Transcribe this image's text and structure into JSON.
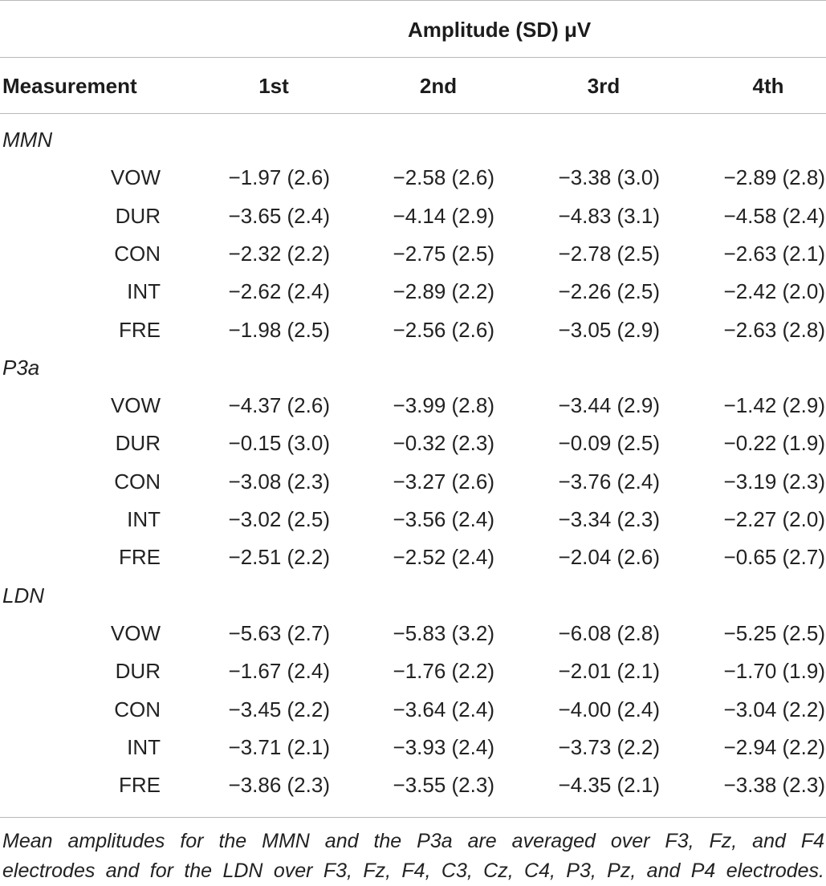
{
  "header": {
    "group_title": "Amplitude (SD) μV",
    "measurement": "Measurement",
    "columns": [
      "1st",
      "2nd",
      "3rd",
      "4th"
    ]
  },
  "groups": [
    {
      "name": "MMN",
      "rows": [
        {
          "label": "VOW",
          "values": [
            "−1.97 (2.6)",
            "−2.58 (2.6)",
            "−3.38 (3.0)",
            "−2.89 (2.8)"
          ]
        },
        {
          "label": "DUR",
          "values": [
            "−3.65 (2.4)",
            "−4.14 (2.9)",
            "−4.83 (3.1)",
            "−4.58 (2.4)"
          ]
        },
        {
          "label": "CON",
          "values": [
            "−2.32 (2.2)",
            "−2.75 (2.5)",
            "−2.78 (2.5)",
            "−2.63 (2.1)"
          ]
        },
        {
          "label": "INT",
          "values": [
            "−2.62 (2.4)",
            "−2.89 (2.2)",
            "−2.26 (2.5)",
            "−2.42 (2.0)"
          ]
        },
        {
          "label": "FRE",
          "values": [
            "−1.98 (2.5)",
            "−2.56 (2.6)",
            "−3.05 (2.9)",
            "−2.63 (2.8)"
          ]
        }
      ]
    },
    {
      "name": "P3a",
      "rows": [
        {
          "label": "VOW",
          "values": [
            "−4.37 (2.6)",
            "−3.99 (2.8)",
            "−3.44 (2.9)",
            "−1.42 (2.9)"
          ]
        },
        {
          "label": "DUR",
          "values": [
            "−0.15 (3.0)",
            "−0.32 (2.3)",
            "−0.09 (2.5)",
            "−0.22 (1.9)"
          ]
        },
        {
          "label": "CON",
          "values": [
            "−3.08 (2.3)",
            "−3.27 (2.6)",
            "−3.76 (2.4)",
            "−3.19 (2.3)"
          ]
        },
        {
          "label": "INT",
          "values": [
            "−3.02 (2.5)",
            "−3.56 (2.4)",
            "−3.34 (2.3)",
            "−2.27 (2.0)"
          ]
        },
        {
          "label": "FRE",
          "values": [
            "−2.51 (2.2)",
            "−2.52 (2.4)",
            "−2.04 (2.6)",
            "−0.65 (2.7)"
          ]
        }
      ]
    },
    {
      "name": "LDN",
      "rows": [
        {
          "label": "VOW",
          "values": [
            "−5.63 (2.7)",
            "−5.83 (3.2)",
            "−6.08 (2.8)",
            "−5.25 (2.5)"
          ]
        },
        {
          "label": "DUR",
          "values": [
            "−1.67 (2.4)",
            "−1.76 (2.2)",
            "−2.01 (2.1)",
            "−1.70 (1.9)"
          ]
        },
        {
          "label": "CON",
          "values": [
            "−3.45 (2.2)",
            "−3.64 (2.4)",
            "−4.00 (2.4)",
            "−3.04 (2.2)"
          ]
        },
        {
          "label": "INT",
          "values": [
            "−3.71 (2.1)",
            "−3.93 (2.4)",
            "−3.73 (2.2)",
            "−2.94 (2.2)"
          ]
        },
        {
          "label": "FRE",
          "values": [
            "−3.86 (2.3)",
            "−3.55 (2.3)",
            "−4.35 (2.1)",
            "−3.38 (2.3)"
          ]
        }
      ]
    }
  ],
  "footnote": {
    "line1": "Mean amplitudes for the MMN and the P3a are averaged over F3, Fz, and F4",
    "line2": "electrodes and for the LDN over F3, Fz, F4, C3, Cz, C4, P3, Pz, and P4 electrodes."
  }
}
